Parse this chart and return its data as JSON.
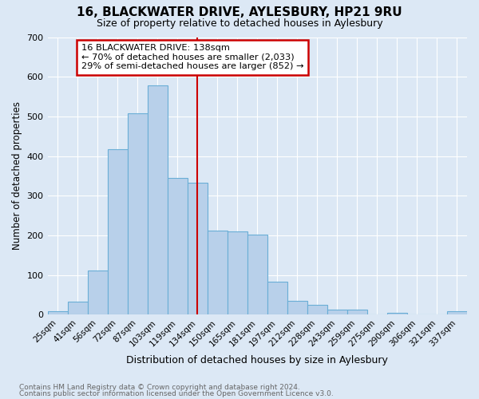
{
  "title1": "16, BLACKWATER DRIVE, AYLESBURY, HP21 9RU",
  "title2": "Size of property relative to detached houses in Aylesbury",
  "xlabel": "Distribution of detached houses by size in Aylesbury",
  "ylabel": "Number of detached properties",
  "categories": [
    "25sqm",
    "41sqm",
    "56sqm",
    "72sqm",
    "87sqm",
    "103sqm",
    "119sqm",
    "134sqm",
    "150sqm",
    "165sqm",
    "181sqm",
    "197sqm",
    "212sqm",
    "228sqm",
    "243sqm",
    "259sqm",
    "275sqm",
    "290sqm",
    "306sqm",
    "321sqm",
    "337sqm"
  ],
  "values": [
    8,
    33,
    112,
    418,
    508,
    578,
    345,
    333,
    212,
    210,
    203,
    83,
    35,
    25,
    13,
    13,
    0,
    5,
    0,
    0,
    8
  ],
  "bar_color": "#b8d0ea",
  "bar_edge_color": "#6aaed6",
  "vline_color": "#cc0000",
  "vline_index": 7,
  "annotation_line1": "16 BLACKWATER DRIVE: 138sqm",
  "annotation_line2": "← 70% of detached houses are smaller (2,033)",
  "annotation_line3": "29% of semi-detached houses are larger (852) →",
  "footer1": "Contains HM Land Registry data © Crown copyright and database right 2024.",
  "footer2": "Contains public sector information licensed under the Open Government Licence v3.0.",
  "ylim": [
    0,
    700
  ],
  "background_color": "#dce8f5",
  "grid_color": "#ffffff",
  "yticks": [
    0,
    100,
    200,
    300,
    400,
    500,
    600,
    700
  ]
}
